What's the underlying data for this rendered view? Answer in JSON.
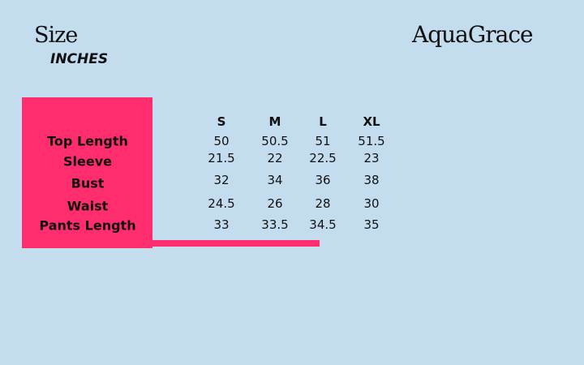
{
  "header": {
    "title": "Size",
    "subtitle": "INCHES",
    "brand": "AquaGrace"
  },
  "table": {
    "columns": [
      "S",
      "M",
      "L",
      "XL"
    ],
    "rows": [
      {
        "label": "Top Length",
        "values": [
          50,
          50.5,
          51,
          51.5
        ]
      },
      {
        "label": "Sleeve",
        "values": [
          21.5,
          22,
          22.5,
          23
        ]
      },
      {
        "label": "Bust",
        "values": [
          32,
          34,
          36,
          38
        ]
      },
      {
        "label": "Waist",
        "values": [
          24.5,
          26,
          28,
          30
        ]
      },
      {
        "label": "Pants Length",
        "values": [
          33,
          33.5,
          34.5,
          35
        ]
      }
    ]
  }
}
